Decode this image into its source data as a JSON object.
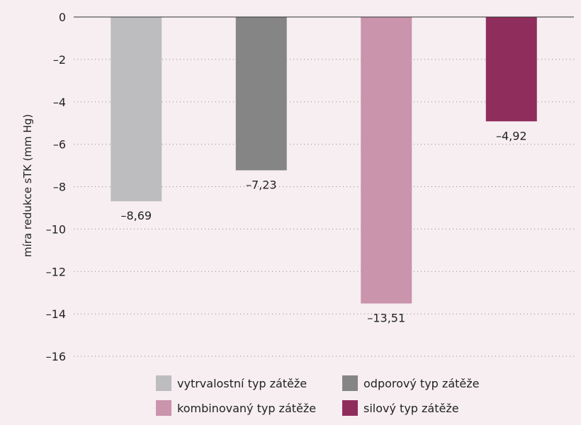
{
  "chart_data": {
    "type": "bar",
    "title": "",
    "xlabel": "",
    "ylabel": "míra redukce sTK (mm Hg)",
    "ylim": [
      -16,
      0
    ],
    "y_ticks": [
      0,
      -2,
      -4,
      -6,
      -8,
      -10,
      -12,
      -14,
      -16
    ],
    "y_tick_labels": [
      "0",
      "–2",
      "–4",
      "–6",
      "–8",
      "–10",
      "–12",
      "–14",
      "–16"
    ],
    "grid": "horizontal dotted",
    "legend_position": "bottom",
    "categories": [
      "vytrvalostní typ zátěže",
      "odporový typ zátěže",
      "kombinovaný typ zátěže",
      "silový typ zátěže"
    ],
    "values": [
      -8.69,
      -7.23,
      -13.51,
      -4.92
    ],
    "data_labels": [
      "–8,69",
      "–7,23",
      "–13,51",
      "–4,92"
    ],
    "colors": [
      "#bdbdbf",
      "#858585",
      "#c994ac",
      "#8f2d5c"
    ]
  }
}
